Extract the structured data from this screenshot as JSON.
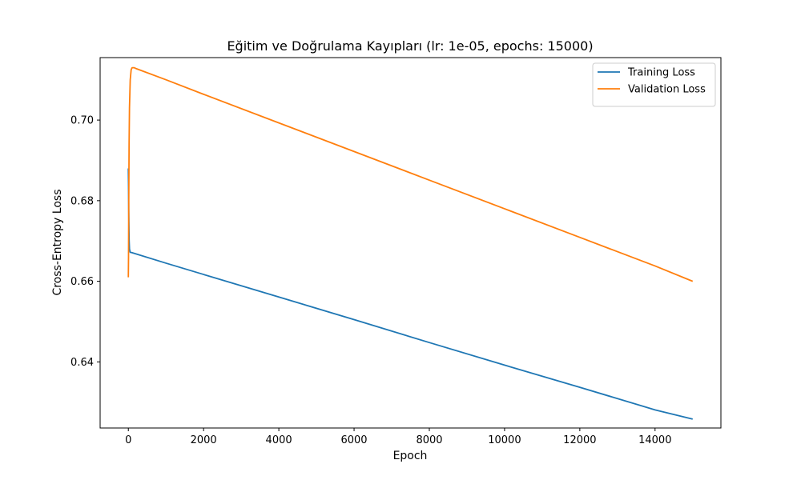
{
  "chart_data": {
    "type": "line",
    "title": "Eğitim ve Doğrulama Kayıpları (lr: 1e-05, epochs: 15000)",
    "xlabel": "Epoch",
    "ylabel": "Cross-Entropy Loss",
    "xlim": [
      -750,
      15750
    ],
    "ylim": [
      0.6236,
      0.7155
    ],
    "xticks": [
      0,
      2000,
      4000,
      6000,
      8000,
      10000,
      12000,
      14000
    ],
    "xtick_labels": [
      "0",
      "2000",
      "4000",
      "6000",
      "8000",
      "10000",
      "12000",
      "14000"
    ],
    "yticks": [
      0.64,
      0.66,
      0.68,
      0.7
    ],
    "ytick_labels": [
      "0.64",
      "0.66",
      "0.68",
      "0.70"
    ],
    "grid": false,
    "legend_position": "top-right",
    "series": [
      {
        "name": "Training Loss",
        "color": "#1f77b4",
        "x": [
          0,
          5,
          10,
          20,
          30,
          50,
          100,
          1000,
          2000,
          4000,
          6000,
          8000,
          10000,
          12000,
          14000,
          15000
        ],
        "y": [
          0.688,
          0.684,
          0.678,
          0.6705,
          0.668,
          0.6672,
          0.6671,
          0.6645,
          0.6617,
          0.6561,
          0.6505,
          0.6448,
          0.6392,
          0.6337,
          0.6281,
          0.6258
        ]
      },
      {
        "name": "Validation Loss",
        "color": "#ff7f0e",
        "x": [
          0,
          5,
          10,
          20,
          30,
          50,
          75,
          100,
          150,
          200,
          1000,
          2000,
          4000,
          6000,
          8000,
          10000,
          12000,
          14000,
          15000
        ],
        "y": [
          0.661,
          0.666,
          0.678,
          0.694,
          0.703,
          0.71,
          0.7125,
          0.713,
          0.713,
          0.7128,
          0.71,
          0.7064,
          0.6993,
          0.6922,
          0.6851,
          0.678,
          0.6709,
          0.6638,
          0.66
        ]
      }
    ]
  }
}
